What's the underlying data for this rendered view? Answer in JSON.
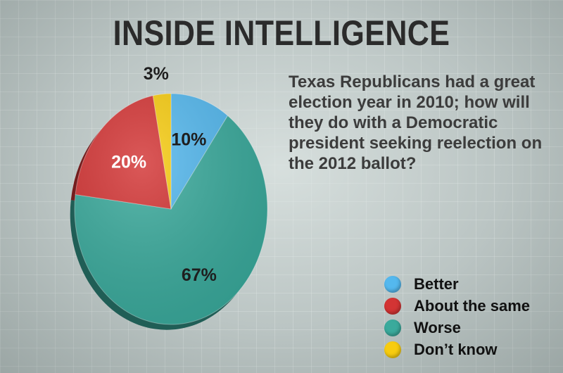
{
  "header": {
    "title": "INSIDE INTELLIGENCE"
  },
  "question": "Texas Republicans had a great election year in 2010; how will they do with a Democratic president seeking reelection on the 2012 ballot?",
  "chart_data": {
    "type": "pie",
    "title": "",
    "labels": [
      "Better",
      "Worse",
      "About the same",
      "Don’t know"
    ],
    "values": [
      10,
      67,
      20,
      3
    ],
    "value_labels": [
      "10%",
      "67%",
      "20%",
      "3%"
    ],
    "colors": [
      "#54b8ee",
      "#3aaa9c",
      "#d33434",
      "#f7cc10"
    ],
    "start": "12 o'clock",
    "direction": "clockwise",
    "legend_position": "bottom-right",
    "legend": [
      {
        "name": "Better",
        "color": "#54b8ee"
      },
      {
        "name": "About the same",
        "color": "#d33434"
      },
      {
        "name": "Worse",
        "color": "#3aaa9c"
      },
      {
        "name": "Don’t know",
        "color": "#f7cc10"
      }
    ]
  }
}
